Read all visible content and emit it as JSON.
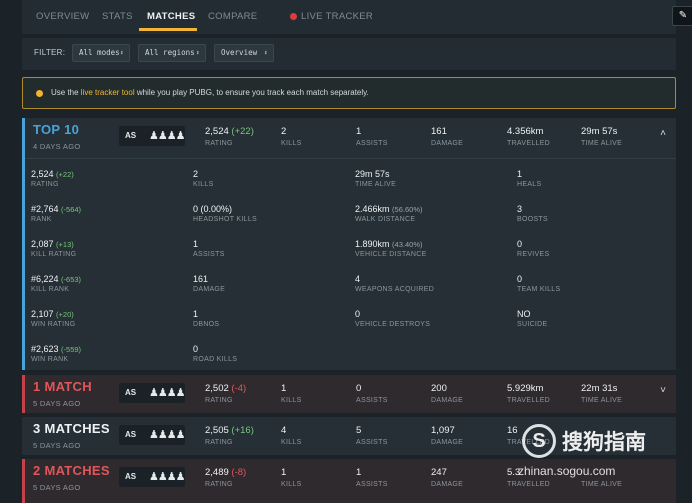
{
  "nav": {
    "tabs": [
      "OVERVIEW",
      "STATS",
      "MATCHES",
      "COMPARE",
      "LIVE TRACKER"
    ],
    "active_tab": "MATCHES",
    "edit_icon": "pencil-icon"
  },
  "filter": {
    "label": "FILTER:",
    "modes": "All modes",
    "regions": "All regions",
    "view": "Overview"
  },
  "notice": {
    "prefix": "Use the ",
    "link": "live tracker tool",
    "suffix": " while you play PUBG, to ensure you track each match separately."
  },
  "labels": {
    "rating": "RATING",
    "kills": "KILLS",
    "assists": "ASSISTS",
    "damage": "DAMAGE",
    "travelled": "TRAVELLED",
    "time_alive": "TIME ALIVE"
  },
  "expanded_match": {
    "place": "TOP 10",
    "ago": "4 DAYS AGO",
    "region": "AS",
    "team_icon": "squad-icon",
    "team_glyph": "♟♟♟♟",
    "rating": "2,524",
    "rating_delta": "(+22)",
    "kills": "2",
    "assists": "1",
    "damage": "161",
    "travelled": "4.356km",
    "time_alive": "29m 57s",
    "collapse_icon": "chevron-up-icon",
    "collapse_glyph": "˄",
    "details": {
      "col1": [
        {
          "value": "2,524",
          "delta": "(+22)",
          "delta_type": "pos",
          "label": "RATING"
        },
        {
          "value": "#2,764",
          "delta": "(-564)",
          "delta_type": "pos",
          "label": "RANK"
        },
        {
          "value": "2,087",
          "delta": "(+13)",
          "delta_type": "pos",
          "label": "KILL RATING"
        },
        {
          "value": "#6,224",
          "delta": "(-653)",
          "delta_type": "pos",
          "label": "KILL RANK"
        },
        {
          "value": "2,107",
          "delta": "(+20)",
          "delta_type": "pos",
          "label": "WIN RATING"
        },
        {
          "value": "#2,623",
          "delta": "(-559)",
          "delta_type": "pos",
          "label": "WIN RANK"
        }
      ],
      "col2": [
        {
          "value": "2",
          "delta": "",
          "label": "KILLS"
        },
        {
          "value": "0 (0.00%)",
          "delta": "",
          "label": "HEADSHOT KILLS"
        },
        {
          "value": "1",
          "delta": "",
          "label": "ASSISTS"
        },
        {
          "value": "161",
          "delta": "",
          "label": "DAMAGE"
        },
        {
          "value": "1",
          "delta": "",
          "label": "DBNOS"
        },
        {
          "value": "0",
          "delta": "",
          "label": "ROAD KILLS"
        }
      ],
      "col3": [
        {
          "value": "29m 57s",
          "delta": "",
          "label": "TIME ALIVE"
        },
        {
          "value": "2.466km",
          "delta": "(56.60%)",
          "delta_type": "muted",
          "label": "WALK DISTANCE"
        },
        {
          "value": "1.890km",
          "delta": "(43.40%)",
          "delta_type": "muted",
          "label": "VEHICLE DISTANCE"
        },
        {
          "value": "4",
          "delta": "",
          "label": "WEAPONS ACQUIRED"
        },
        {
          "value": "0",
          "delta": "",
          "label": "VEHICLE DESTROYS"
        }
      ],
      "col4": [
        {
          "value": "1",
          "delta": "",
          "label": "HEALS"
        },
        {
          "value": "3",
          "delta": "",
          "label": "BOOSTS"
        },
        {
          "value": "0",
          "delta": "",
          "label": "REVIVES"
        },
        {
          "value": "0",
          "delta": "",
          "label": "TEAM KILLS"
        },
        {
          "value": "NO",
          "delta": "",
          "label": "SUICIDE"
        }
      ]
    }
  },
  "matches": [
    {
      "place": "1 MATCH",
      "place_color": "red",
      "ago": "5 DAYS AGO",
      "region": "AS",
      "team_glyph": "♟♟♟♟",
      "rating": "2,502",
      "rating_delta": "(-4)",
      "delta_type": "neg",
      "kills": "1",
      "assists": "0",
      "damage": "200",
      "travelled": "5.929km",
      "time_alive": "22m 31s",
      "border": "red",
      "expand_glyph": "˅"
    },
    {
      "place": "3 MATCHES",
      "place_color": "white",
      "ago": "5 DAYS AGO",
      "region": "AS",
      "team_glyph": "♟♟♟♟",
      "rating": "2,505",
      "rating_delta": "(+16)",
      "delta_type": "pos",
      "kills": "4",
      "assists": "5",
      "damage": "1,097",
      "travelled": "16",
      "time_alive": "",
      "border": "none",
      "expand_glyph": ""
    },
    {
      "place": "2 MATCHES",
      "place_color": "red",
      "ago": "5 DAYS AGO",
      "region": "AS",
      "team_glyph": "♟♟♟♟",
      "rating": "2,489",
      "rating_delta": "(-8)",
      "delta_type": "neg",
      "kills": "1",
      "assists": "1",
      "damage": "247",
      "travelled": "5.3",
      "time_alive": "",
      "border": "red",
      "expand_glyph": ""
    }
  ],
  "watermark": {
    "logo": "S",
    "text": "搜狗指南",
    "url": "zhinan.sogou.com"
  }
}
